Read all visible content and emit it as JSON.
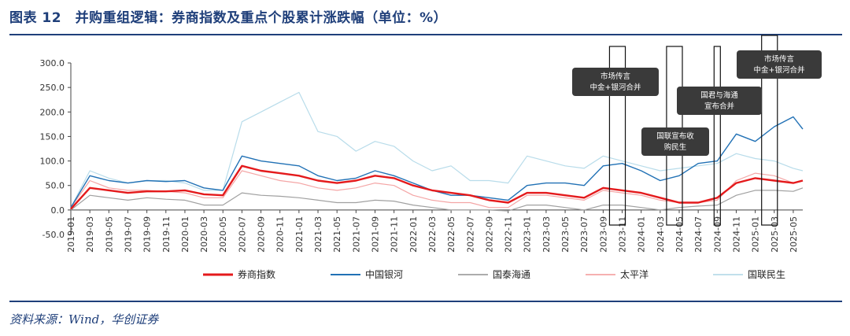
{
  "figure": {
    "title": "图表 12　并购重组逻辑：券商指数及重点个股累计涨跌幅（单位：%）",
    "source": "资料来源：Wind，华创证券"
  },
  "chart_data": {
    "type": "line",
    "title": "",
    "xlabel": "",
    "ylabel": "",
    "ylim": [
      -50,
      300
    ],
    "yticks": [
      -50,
      0,
      50,
      100,
      150,
      200,
      250,
      300
    ],
    "ytick_labels": [
      "-50.0",
      "0.0",
      "50.0",
      "100.0",
      "150.0",
      "200.0",
      "250.0",
      "300.0"
    ],
    "x_tick_labels": [
      "2019-01",
      "2019-03",
      "2019-05",
      "2019-07",
      "2019-09",
      "2019-11",
      "2020-01",
      "2020-03",
      "2020-05",
      "2020-07",
      "2020-09",
      "2020-11",
      "2021-01",
      "2021-03",
      "2021-05",
      "2021-07",
      "2021-09",
      "2021-11",
      "2022-01",
      "2022-03",
      "2022-05",
      "2022-07",
      "2022-09",
      "2022-11",
      "2023-01",
      "2023-03",
      "2023-05",
      "2023-07",
      "2023-09",
      "2023-11",
      "2024-01",
      "2024-03",
      "2024-05",
      "2024-07",
      "2024-09",
      "2024-11",
      "2025-01",
      "2025-03",
      "2025-05"
    ],
    "grid": false,
    "legend_position": "bottom",
    "x": [
      "2019-01",
      "2019-03",
      "2019-05",
      "2019-07",
      "2019-09",
      "2019-11",
      "2020-01",
      "2020-03",
      "2020-05",
      "2020-07",
      "2020-09",
      "2020-11",
      "2021-01",
      "2021-03",
      "2021-05",
      "2021-07",
      "2021-09",
      "2021-11",
      "2022-01",
      "2022-03",
      "2022-05",
      "2022-07",
      "2022-09",
      "2022-11",
      "2023-01",
      "2023-03",
      "2023-05",
      "2023-07",
      "2023-09",
      "2023-11",
      "2024-01",
      "2024-03",
      "2024-05",
      "2024-07",
      "2024-09",
      "2024-11",
      "2025-01",
      "2025-03",
      "2025-05",
      "2025-06"
    ],
    "series": [
      {
        "name": "券商指数",
        "color": "#e41a1c",
        "width": 2.4,
        "values": [
          2,
          45,
          40,
          35,
          38,
          38,
          40,
          32,
          30,
          90,
          80,
          75,
          70,
          60,
          55,
          60,
          70,
          65,
          50,
          40,
          35,
          30,
          20,
          15,
          35,
          35,
          30,
          25,
          45,
          40,
          35,
          25,
          15,
          15,
          25,
          55,
          65,
          60,
          55,
          60
        ]
      },
      {
        "name": "中国银河",
        "color": "#2171b5",
        "width": 1.4,
        "values": [
          5,
          70,
          60,
          55,
          60,
          58,
          60,
          45,
          40,
          110,
          100,
          95,
          90,
          70,
          60,
          65,
          80,
          70,
          55,
          40,
          30,
          30,
          25,
          20,
          50,
          55,
          55,
          50,
          90,
          95,
          80,
          60,
          70,
          95,
          100,
          155,
          140,
          170,
          190,
          165
        ]
      },
      {
        "name": "国泰海通",
        "color": "#a0a0a0",
        "width": 1.2,
        "values": [
          0,
          30,
          25,
          20,
          25,
          22,
          20,
          10,
          10,
          35,
          30,
          28,
          25,
          20,
          15,
          15,
          20,
          18,
          10,
          5,
          0,
          0,
          0,
          -2,
          10,
          10,
          5,
          0,
          10,
          10,
          5,
          0,
          5,
          8,
          10,
          30,
          40,
          40,
          38,
          45
        ]
      },
      {
        "name": "太平洋",
        "color": "#f4a6a6",
        "width": 1.2,
        "values": [
          5,
          60,
          45,
          40,
          40,
          38,
          35,
          25,
          25,
          80,
          70,
          60,
          55,
          45,
          40,
          45,
          55,
          50,
          30,
          20,
          15,
          15,
          5,
          5,
          30,
          30,
          25,
          20,
          40,
          35,
          30,
          20,
          15,
          15,
          20,
          60,
          75,
          70,
          55,
          60
        ]
      },
      {
        "name": "国联民生",
        "color": "#b8dcea",
        "width": 1.2,
        "values": [
          5,
          80,
          65,
          55,
          60,
          60,
          55,
          40,
          40,
          180,
          200,
          220,
          240,
          160,
          150,
          120,
          140,
          130,
          100,
          80,
          90,
          60,
          60,
          55,
          110,
          100,
          90,
          85,
          110,
          100,
          90,
          80,
          85,
          90,
          95,
          115,
          105,
          100,
          85,
          80
        ]
      }
    ],
    "annotations": [
      {
        "text_lines": [
          "市场传言",
          "中金+银河合并"
        ],
        "box_start": "2023-10",
        "box_end": "2023-11"
      },
      {
        "text_lines": [
          "国联宣布收",
          "购民生"
        ],
        "box_start": "2024-04",
        "box_end": "2024-05"
      },
      {
        "text_lines": [
          "国君与海通",
          "宣布合并"
        ],
        "box_start": "2024-09",
        "box_end": "2024-09"
      },
      {
        "text_lines": [
          "市场传言",
          "中金+银河合并"
        ],
        "box_start": "2025-02",
        "box_end": "2025-03"
      }
    ]
  }
}
